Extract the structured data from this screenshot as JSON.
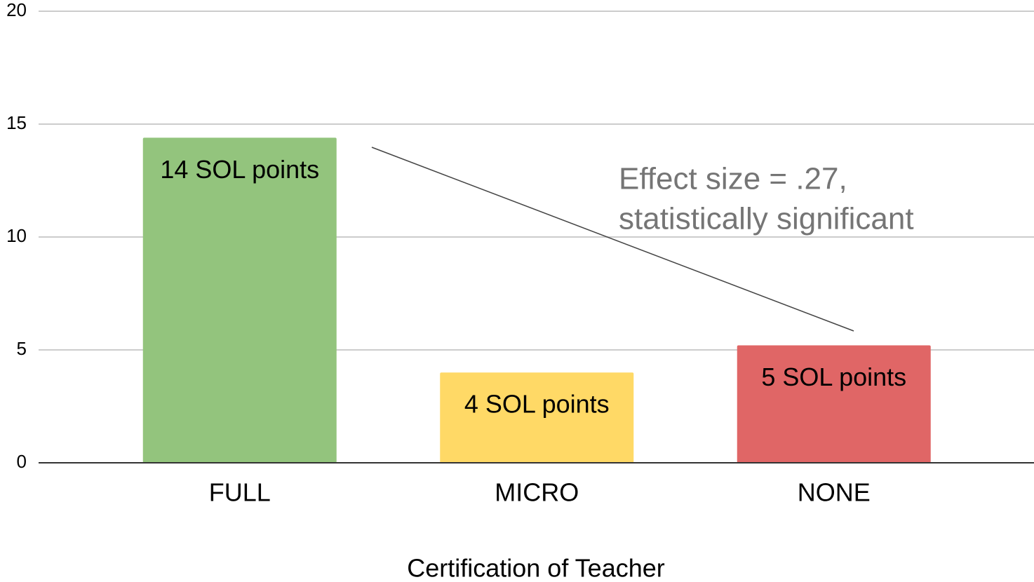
{
  "chart_data": {
    "type": "bar",
    "categories": [
      "FULL",
      "MICRO",
      "NONE"
    ],
    "values": [
      14.4,
      4.0,
      5.2
    ],
    "value_labels": [
      "14 SOL points",
      "4 SOL points",
      "5 SOL points"
    ],
    "colors": [
      "#93c47d",
      "#ffd966",
      "#e06666"
    ],
    "x_label": "Certification of Teacher",
    "annotation": [
      "Effect size = .27,",
      "statistically significant"
    ],
    "ylim": [
      0,
      20
    ],
    "yticks": [
      0,
      5,
      10,
      15,
      20
    ],
    "grid": true
  }
}
